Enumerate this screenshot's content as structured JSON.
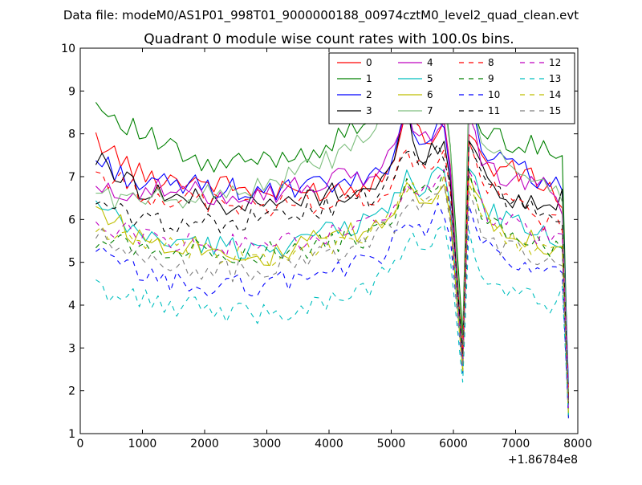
{
  "figure": {
    "supertitle": "Data file: modeM0/AS1P01_998T01_9000000188_00974cztM0_level2_quad_clean.evt"
  },
  "chart_data": {
    "type": "line",
    "title": "Quadrant 0 module wise count rates with 100.0s bins.",
    "xlabel": "",
    "ylabel": "",
    "x_offset_label": "+1.86784e8",
    "xlim": [
      0,
      8000
    ],
    "ylim": [
      1,
      10
    ],
    "xticks": [
      0,
      1000,
      2000,
      3000,
      4000,
      5000,
      6000,
      7000,
      8000
    ],
    "yticks": [
      1,
      2,
      3,
      4,
      5,
      6,
      7,
      8,
      9,
      10
    ],
    "legend_position": "upper-right",
    "legend_columns": 4,
    "x_start": 250,
    "x_step": 100,
    "bins": 77,
    "anchor_x": [
      250,
      1000,
      2000,
      3000,
      4000,
      4650,
      5000,
      5250,
      5500,
      5900,
      6000,
      6050,
      6150,
      6250,
      6350,
      6500,
      7000,
      7500,
      7750,
      7850
    ],
    "series": [
      {
        "name": "0",
        "color": "#ff0000",
        "dash": "solid",
        "anchors": [
          7.9,
          7.0,
          6.9,
          6.6,
          6.7,
          6.8,
          7.4,
          8.6,
          7.8,
          8.4,
          6.0,
          5.0,
          3.2,
          8.0,
          7.8,
          7.3,
          7.1,
          6.8,
          6.4,
          2.0
        ]
      },
      {
        "name": "1",
        "color": "#008000",
        "dash": "solid",
        "anchors": [
          8.7,
          8.0,
          7.2,
          7.4,
          7.7,
          8.4,
          8.5,
          8.8,
          8.7,
          9.0,
          6.4,
          5.5,
          3.3,
          9.0,
          8.4,
          8.0,
          7.8,
          7.6,
          7.7,
          2.0
        ]
      },
      {
        "name": "2",
        "color": "#0000ff",
        "dash": "solid",
        "anchors": [
          7.4,
          6.8,
          6.8,
          6.6,
          6.8,
          6.9,
          7.4,
          8.6,
          7.6,
          8.3,
          6.0,
          4.9,
          2.7,
          8.6,
          8.3,
          7.5,
          7.2,
          6.9,
          6.6,
          1.9
        ]
      },
      {
        "name": "3",
        "color": "#000000",
        "dash": "solid",
        "anchors": [
          7.4,
          6.7,
          6.4,
          6.3,
          6.6,
          6.7,
          7.1,
          8.5,
          7.4,
          8.0,
          5.7,
          4.7,
          2.8,
          7.9,
          7.6,
          7.0,
          6.4,
          6.3,
          6.5,
          1.9
        ]
      },
      {
        "name": "4",
        "color": "#bf00bf",
        "dash": "solid",
        "anchors": [
          6.6,
          6.7,
          6.6,
          6.6,
          6.9,
          7.0,
          7.5,
          8.6,
          7.8,
          8.2,
          6.1,
          5.0,
          3.0,
          8.4,
          8.0,
          7.2,
          6.9,
          6.7,
          6.3,
          1.9
        ]
      },
      {
        "name": "5",
        "color": "#00bfbf",
        "dash": "solid",
        "anchors": [
          6.3,
          5.6,
          5.4,
          5.3,
          5.7,
          6.0,
          6.3,
          7.1,
          6.7,
          7.2,
          5.4,
          4.4,
          2.6,
          7.2,
          7.0,
          6.2,
          5.9,
          5.6,
          5.5,
          1.6
        ]
      },
      {
        "name": "6",
        "color": "#bfbf00",
        "dash": "solid",
        "anchors": [
          6.3,
          5.5,
          5.4,
          5.1,
          5.6,
          5.7,
          6.0,
          7.0,
          6.4,
          6.9,
          5.1,
          4.2,
          2.5,
          7.0,
          6.7,
          6.1,
          5.7,
          5.4,
          5.3,
          1.6
        ]
      },
      {
        "name": "7",
        "color": "#7fbf7f",
        "dash": "solid",
        "anchors": [
          6.6,
          6.4,
          6.6,
          6.8,
          7.4,
          7.9,
          8.6,
          9.6,
          8.7,
          9.1,
          6.2,
          5.1,
          3.0,
          8.8,
          8.4,
          7.6,
          7.2,
          6.9,
          6.6,
          2.0
        ]
      },
      {
        "name": "8",
        "color": "#ff0000",
        "dash": "dashed",
        "anchors": [
          7.1,
          6.6,
          6.4,
          6.3,
          6.4,
          6.5,
          6.8,
          7.5,
          7.2,
          7.6,
          5.7,
          4.7,
          2.8,
          7.8,
          7.4,
          6.8,
          6.3,
          6.0,
          5.9,
          1.8
        ]
      },
      {
        "name": "9",
        "color": "#008000",
        "dash": "dashed",
        "anchors": [
          5.6,
          5.3,
          5.3,
          5.2,
          5.4,
          5.6,
          6.0,
          6.8,
          6.5,
          7.0,
          5.2,
          4.3,
          2.5,
          7.1,
          6.6,
          6.0,
          5.6,
          5.3,
          5.3,
          1.6
        ]
      },
      {
        "name": "10",
        "color": "#0000ff",
        "dash": "dashed",
        "anchors": [
          5.2,
          4.7,
          4.4,
          4.5,
          4.8,
          5.0,
          5.3,
          6.1,
          5.8,
          6.4,
          4.8,
          4.0,
          2.4,
          6.3,
          5.9,
          5.3,
          4.9,
          4.7,
          4.8,
          1.5
        ]
      },
      {
        "name": "11",
        "color": "#000000",
        "dash": "dashed",
        "anchors": [
          6.3,
          6.0,
          5.9,
          6.0,
          6.3,
          6.5,
          6.8,
          7.6,
          7.2,
          7.7,
          5.8,
          4.8,
          2.8,
          7.8,
          7.4,
          6.8,
          6.4,
          6.1,
          6.0,
          1.8
        ]
      },
      {
        "name": "12",
        "color": "#bf00bf",
        "dash": "dashed",
        "anchors": [
          6.0,
          5.6,
          5.4,
          5.4,
          5.6,
          5.8,
          6.2,
          7.0,
          6.7,
          7.1,
          5.3,
          4.4,
          2.6,
          7.2,
          6.8,
          6.2,
          5.8,
          5.6,
          5.5,
          1.7
        ]
      },
      {
        "name": "13",
        "color": "#00bfbf",
        "dash": "dashed",
        "anchors": [
          4.4,
          4.1,
          3.9,
          3.8,
          4.1,
          4.4,
          4.8,
          5.6,
          5.3,
          5.8,
          4.3,
          3.6,
          2.2,
          5.7,
          5.1,
          4.5,
          4.2,
          4.0,
          4.2,
          1.4
        ]
      },
      {
        "name": "14",
        "color": "#bfbf00",
        "dash": "dashed",
        "anchors": [
          5.8,
          5.4,
          5.2,
          5.1,
          5.4,
          5.6,
          6.0,
          6.8,
          6.4,
          6.9,
          5.1,
          4.2,
          2.5,
          6.9,
          6.5,
          5.9,
          5.5,
          5.2,
          5.2,
          1.6
        ]
      },
      {
        "name": "15",
        "color": "#7f7f7f",
        "dash": "dashed",
        "anchors": [
          5.6,
          5.1,
          4.8,
          4.8,
          5.2,
          5.5,
          5.8,
          6.5,
          6.2,
          6.7,
          5.0,
          4.1,
          2.5,
          6.7,
          6.2,
          5.6,
          5.2,
          5.0,
          5.1,
          1.6
        ]
      }
    ]
  }
}
